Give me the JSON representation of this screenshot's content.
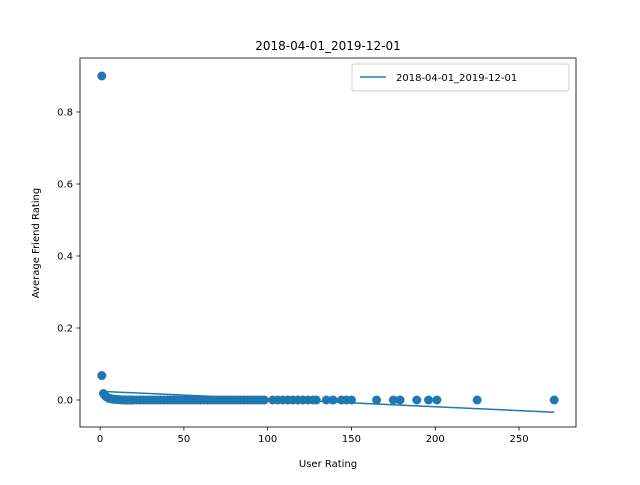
{
  "chart_data": {
    "type": "scatter",
    "title": "2018-04-01_2019-12-01",
    "xlabel": "User Rating",
    "ylabel": "Average Friend Rating",
    "xlim": [
      -12,
      284
    ],
    "ylim": [
      -0.075,
      0.95
    ],
    "xticks": [
      0,
      50,
      100,
      150,
      200,
      250
    ],
    "xtick_labels": [
      "0",
      "50",
      "100",
      "150",
      "200",
      "250"
    ],
    "yticks": [
      0.0,
      0.2,
      0.4,
      0.6,
      0.8
    ],
    "ytick_labels": [
      "0.0",
      "0.2",
      "0.4",
      "0.6",
      "0.8"
    ],
    "grid": false,
    "legend": {
      "placement": "top-right",
      "entries": [
        "2018-04-01_2019-12-01"
      ]
    },
    "series": [
      {
        "kind": "scatter",
        "color": "#1f77b4",
        "points": [
          [
            1,
            0.9
          ],
          [
            1,
            0.068
          ],
          [
            2,
            0.018
          ],
          [
            3,
            0.012
          ],
          [
            4,
            0.008
          ],
          [
            5,
            0.005
          ],
          [
            6,
            0.004
          ],
          [
            7,
            0.003
          ],
          [
            8,
            0.002
          ],
          [
            9,
            0.002
          ],
          [
            10,
            0.001
          ],
          [
            11,
            0.001
          ],
          [
            12,
            0.001
          ],
          [
            13,
            0.0
          ],
          [
            14,
            0.0
          ],
          [
            15,
            0.0
          ],
          [
            16,
            0.0
          ],
          [
            17,
            0.0
          ],
          [
            18,
            0.0
          ],
          [
            19,
            0.0
          ],
          [
            20,
            0.0
          ],
          [
            22,
            0.0
          ],
          [
            24,
            0.0
          ],
          [
            26,
            0.0
          ],
          [
            28,
            0.0
          ],
          [
            30,
            0.0
          ],
          [
            32,
            0.0
          ],
          [
            34,
            0.0
          ],
          [
            36,
            0.0
          ],
          [
            38,
            0.0
          ],
          [
            40,
            0.0
          ],
          [
            42,
            0.0
          ],
          [
            44,
            0.0
          ],
          [
            46,
            0.0
          ],
          [
            48,
            0.0
          ],
          [
            50,
            0.0
          ],
          [
            52,
            0.0
          ],
          [
            54,
            0.0
          ],
          [
            56,
            0.0
          ],
          [
            58,
            0.0
          ],
          [
            60,
            0.0
          ],
          [
            62,
            0.0
          ],
          [
            64,
            0.0
          ],
          [
            66,
            0.0
          ],
          [
            68,
            0.0
          ],
          [
            70,
            0.0
          ],
          [
            72,
            0.0
          ],
          [
            74,
            0.0
          ],
          [
            76,
            0.0
          ],
          [
            78,
            0.0
          ],
          [
            80,
            0.0
          ],
          [
            82,
            0.0
          ],
          [
            84,
            0.0
          ],
          [
            86,
            0.0
          ],
          [
            88,
            0.0
          ],
          [
            90,
            0.0
          ],
          [
            92,
            0.0
          ],
          [
            94,
            0.0
          ],
          [
            96,
            0.0
          ],
          [
            98,
            0.0
          ],
          [
            103,
            0.0
          ],
          [
            106,
            0.0
          ],
          [
            109,
            0.0
          ],
          [
            112,
            0.0
          ],
          [
            115,
            0.0
          ],
          [
            118,
            0.0
          ],
          [
            121,
            0.0
          ],
          [
            124,
            0.0
          ],
          [
            127,
            0.0
          ],
          [
            129,
            0.0
          ],
          [
            135,
            0.0
          ],
          [
            139,
            0.0
          ],
          [
            144,
            0.0
          ],
          [
            147,
            0.0
          ],
          [
            150,
            0.0
          ],
          [
            165,
            0.0
          ],
          [
            175,
            0.0
          ],
          [
            179,
            0.0
          ],
          [
            189,
            0.0
          ],
          [
            196,
            0.0
          ],
          [
            201,
            0.0
          ],
          [
            225,
            0.0
          ],
          [
            271,
            0.0
          ]
        ]
      },
      {
        "kind": "line",
        "name": "2018-04-01_2019-12-01",
        "color": "#1f77b4",
        "x": [
          1,
          271
        ],
        "y": [
          0.024,
          -0.034
        ]
      }
    ]
  }
}
